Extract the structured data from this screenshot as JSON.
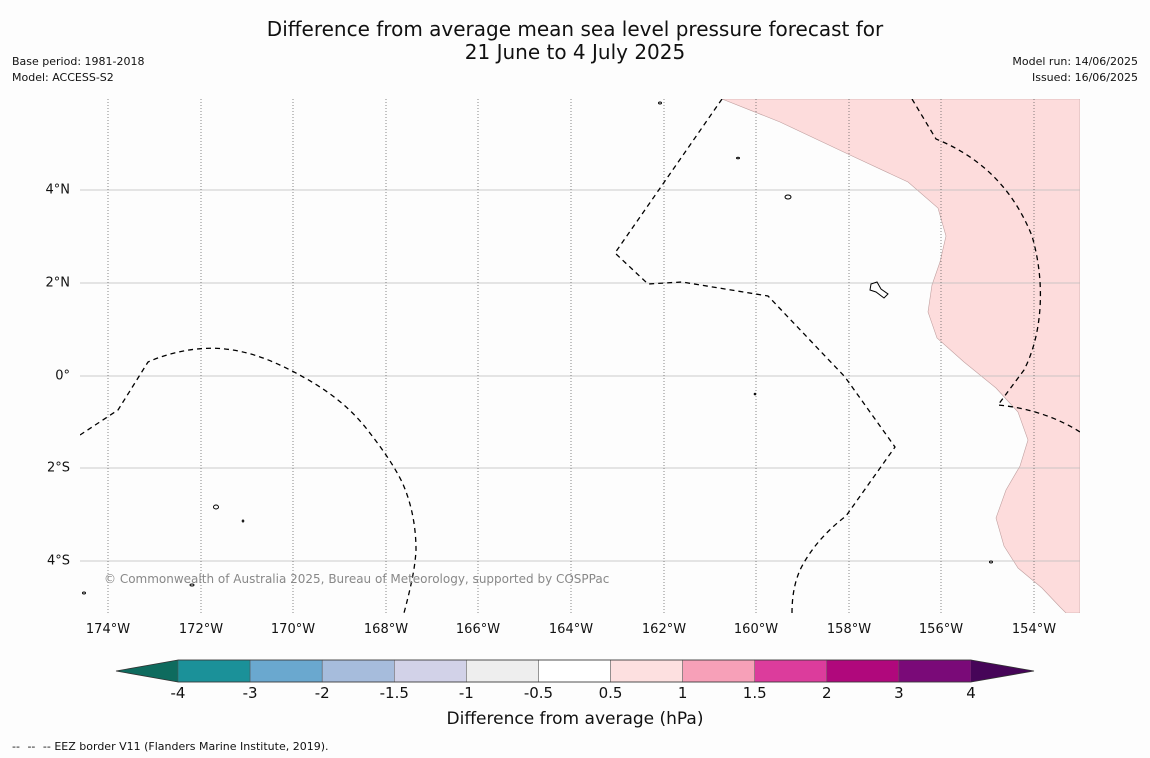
{
  "title": {
    "line1": "Difference from average mean sea level pressure forecast for",
    "line2": "21 June to 4 July 2025"
  },
  "meta_left": {
    "base_period": "Base period: 1981-2018",
    "model": "Model: ACCESS-S2"
  },
  "meta_right": {
    "model_run": "Model run: 14/06/2025",
    "issued": "Issued: 16/06/2025"
  },
  "map": {
    "lat_labels": [
      "4°N",
      "2°N",
      "0°",
      "2°S",
      "4°S"
    ],
    "lon_labels": [
      "174°W",
      "172°W",
      "170°W",
      "168°W",
      "166°W",
      "164°W",
      "162°W",
      "160°W",
      "158°W",
      "156°W",
      "154°W"
    ],
    "copyright": "© Commonwealth of Australia 2025, Bureau of Meteorology, supported by COSPPac",
    "anomaly_fill_color": "#fddcdc",
    "anomaly_fill_category": "0.5 to 1"
  },
  "colorbar": {
    "ticks": [
      "-4",
      "-3",
      "-2",
      "-1.5",
      "-1",
      "-0.5",
      "0.5",
      "1",
      "1.5",
      "2",
      "3",
      "4"
    ],
    "colors": [
      "#0e6b5e",
      "#1b9199",
      "#6aa8cf",
      "#a6bcdc",
      "#d2d2e8",
      "#eeeeee",
      "#ffffff",
      "#fde0e0",
      "#f7a0b8",
      "#dc3c9c",
      "#b0087c",
      "#7a0a78",
      "#460558"
    ],
    "label": "Difference from average (hPa)"
  },
  "footer": {
    "eez_note": "-- EEZ border V11 (Flanders Marine Institute, 2019).",
    "dash_symbol": "--"
  }
}
